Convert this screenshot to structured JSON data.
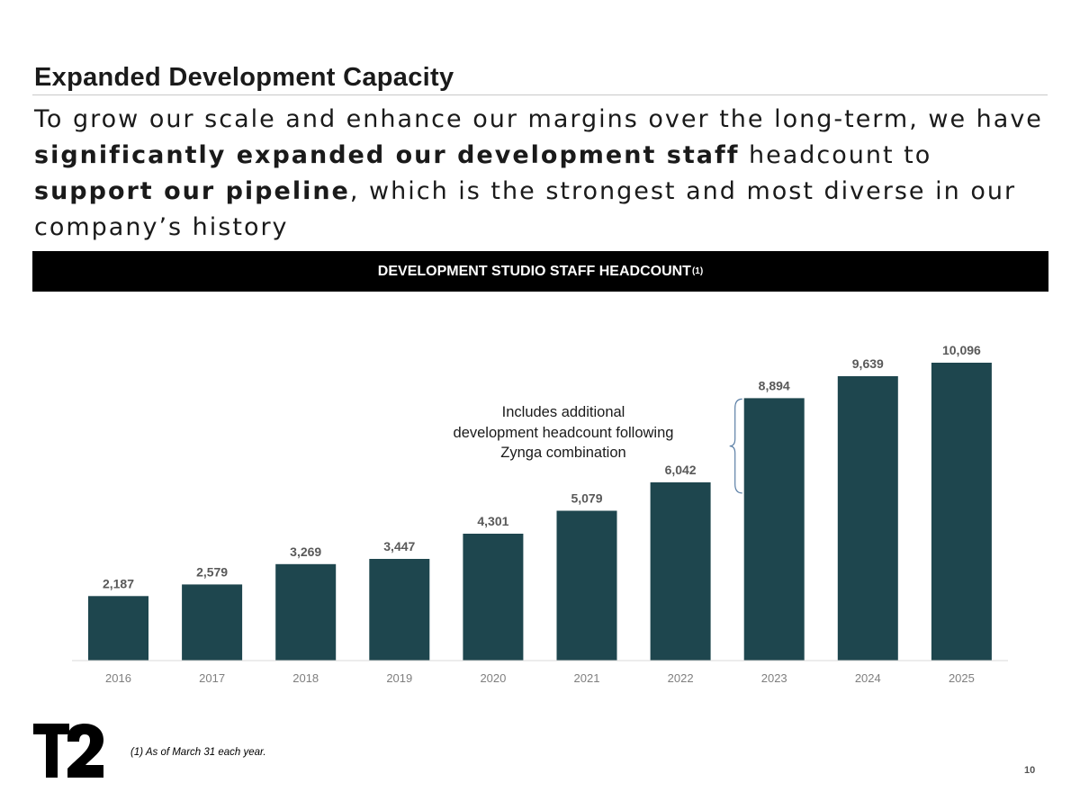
{
  "title": "Expanded Development Capacity",
  "subtitle": {
    "part1": "To grow our scale and enhance our margins over the long-term, we have ",
    "bold1": "significantly expanded our development staff",
    "part2": " headcount to ",
    "bold2": "support our pipeline",
    "part3": ", which is the strongest and most diverse in our company’s history"
  },
  "banner": {
    "text": "DEVELOPMENT STUDIO STAFF HEADCOUNT",
    "superscript": "(1)"
  },
  "chart_data": {
    "type": "bar",
    "categories": [
      "2016",
      "2017",
      "2018",
      "2019",
      "2020",
      "2021",
      "2022",
      "2023",
      "2024",
      "2025"
    ],
    "values": [
      2187,
      2579,
      3269,
      3447,
      4301,
      5079,
      6042,
      8894,
      9639,
      10096
    ],
    "value_labels": [
      "2,187",
      "2,579",
      "3,269",
      "3,447",
      "4,301",
      "5,079",
      "6,042",
      "8,894",
      "9,639",
      "10,096"
    ],
    "ylim": [
      0,
      10096
    ],
    "bar_color": "#1e464e",
    "grid": false,
    "annotation": {
      "lines": [
        "Includes additional",
        "development headcount following",
        "Zynga combination"
      ],
      "spans": [
        "6,042",
        "8,894"
      ]
    }
  },
  "footnote": "(1)  As of March 31 each year.",
  "page_number": "10",
  "logo": {
    "icon": "t2-logo",
    "text": "T2"
  }
}
